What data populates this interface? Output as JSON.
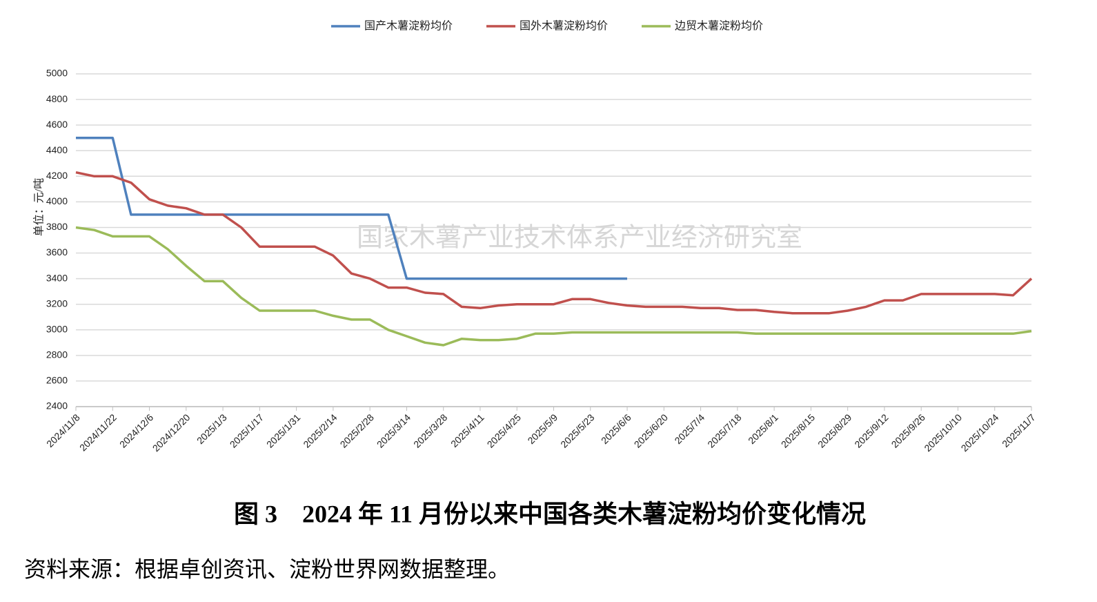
{
  "chart_data": {
    "type": "line",
    "title": "图 3　2024 年 11 月份以来中国各类木薯淀粉均价变化情况",
    "source": "资料来源：根据卓创资讯、淀粉世界网数据整理。",
    "y_label": "单位：元/吨",
    "watermark": "国家木薯产业技术体系产业经济研究室",
    "categories": [
      "2024/11/8",
      null,
      "2024/11/22",
      null,
      "2024/12/6",
      null,
      "2024/12/20",
      null,
      "2025/1/3",
      null,
      "2025/1/17",
      null,
      "2025/1/31",
      null,
      "2025/2/14",
      null,
      "2025/2/28",
      null,
      "2025/3/14",
      null,
      "2025/3/28",
      null,
      "2025/4/11",
      null,
      "2025/4/25",
      null,
      "2025/5/9",
      null,
      "2025/5/23",
      null,
      "2025/6/6",
      null,
      "2025/6/20",
      null,
      "2025/7/4",
      null,
      "2025/7/18",
      null,
      "2025/8/1",
      null,
      "2025/8/15",
      null,
      "2025/8/29",
      null,
      "2025/9/12",
      null,
      "2025/9/26",
      null,
      "2025/10/10",
      null,
      "2025/10/24",
      null,
      "2025/11/7"
    ],
    "series": [
      {
        "name": "国产木薯淀粉均价",
        "color": "#4f81bd",
        "values": [
          4500,
          4500,
          4500,
          3900,
          3900,
          3900,
          3900,
          3900,
          3900,
          3900,
          3900,
          3900,
          3900,
          3900,
          3900,
          3900,
          3900,
          3900,
          3400,
          3400,
          3400,
          3400,
          3400,
          3400,
          3400,
          3400,
          3400,
          3400,
          3400,
          3400,
          3400,
          null,
          null,
          null,
          null,
          null,
          null,
          null,
          null,
          null,
          null,
          null,
          null,
          null,
          null,
          null,
          null,
          null,
          null,
          null,
          null,
          null,
          null
        ]
      },
      {
        "name": "国外木薯淀粉均价",
        "color": "#c0504d",
        "values": [
          4230,
          4200,
          4200,
          4150,
          4020,
          3970,
          3950,
          3900,
          3900,
          3800,
          3650,
          3650,
          3650,
          3650,
          3580,
          3440,
          3400,
          3330,
          3330,
          3290,
          3280,
          3180,
          3170,
          3190,
          3200,
          3200,
          3200,
          3240,
          3240,
          3210,
          3190,
          3180,
          3180,
          3180,
          3170,
          3170,
          3155,
          3155,
          3140,
          3130,
          3130,
          3130,
          3150,
          3180,
          3230,
          3230,
          3280,
          3280,
          3280,
          3280,
          3280,
          3270,
          3400
        ]
      },
      {
        "name": "边贸木薯淀粉均价",
        "color": "#9bbb59",
        "values": [
          3800,
          3780,
          3730,
          3730,
          3730,
          3630,
          3500,
          3380,
          3380,
          3250,
          3150,
          3150,
          3150,
          3150,
          3110,
          3080,
          3080,
          3000,
          2950,
          2900,
          2880,
          2930,
          2920,
          2920,
          2930,
          2970,
          2970,
          2980,
          2980,
          2980,
          2980,
          2980,
          2980,
          2980,
          2980,
          2980,
          2980,
          2970,
          2970,
          2970,
          2970,
          2970,
          2970,
          2970,
          2970,
          2970,
          2970,
          2970,
          2970,
          2970,
          2970,
          2970,
          2990
        ]
      }
    ],
    "ylim": [
      2400,
      5000
    ],
    "yticks": [
      2400,
      2600,
      2800,
      3000,
      3200,
      3400,
      3600,
      3800,
      4000,
      4200,
      4400,
      4600,
      4800,
      5000
    ],
    "grid": true,
    "legend": "top"
  }
}
